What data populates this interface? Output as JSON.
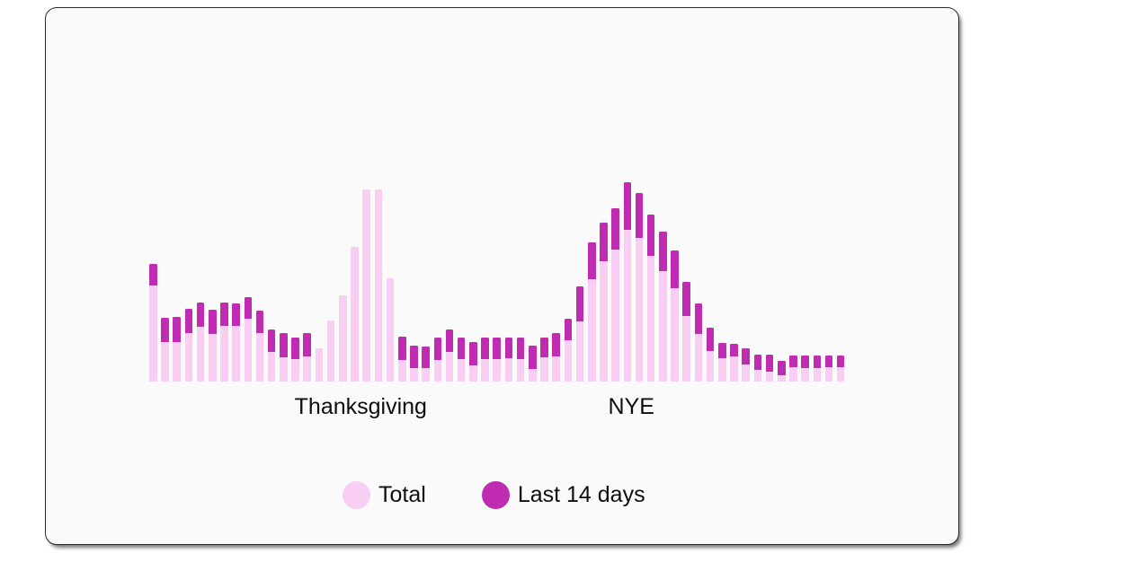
{
  "chart_data": {
    "type": "bar",
    "stacked": true,
    "note": "Daily counts; no axes or numeric labels shown. Values are bar heights in screen px; 'Last 14 days' is the dark segment drawn at the top of each 'Total' bar.",
    "unit": "px",
    "ylim": [
      0,
      230
    ],
    "grid": false,
    "legend_position": "bottom",
    "series": [
      {
        "name": "Total",
        "color": "#f9cef3",
        "values": [
          131,
          71,
          72,
          81,
          88,
          80,
          88,
          87,
          94,
          79,
          58,
          54,
          49,
          54,
          37,
          68,
          96,
          150,
          214,
          214,
          115,
          50,
          40,
          39,
          49,
          58,
          49,
          44,
          49,
          49,
          49,
          49,
          40,
          49,
          54,
          70,
          106,
          155,
          177,
          193,
          222,
          210,
          186,
          167,
          146,
          111,
          87,
          60,
          43,
          42,
          37,
          30,
          30,
          23,
          29,
          29,
          29,
          29,
          29
        ]
      },
      {
        "name": "Last 14 days",
        "color": "#bf2bb1",
        "values": [
          24,
          27,
          28,
          27,
          27,
          27,
          26,
          25,
          24,
          25,
          25,
          27,
          24,
          26,
          0,
          0,
          0,
          0,
          0,
          0,
          0,
          26,
          25,
          24,
          25,
          25,
          24,
          26,
          24,
          24,
          23,
          24,
          26,
          22,
          26,
          24,
          39,
          41,
          43,
          46,
          53,
          50,
          46,
          44,
          42,
          38,
          34,
          26,
          17,
          14,
          18,
          17,
          19,
          16,
          13,
          14,
          14,
          13,
          13
        ]
      }
    ],
    "annotations": [
      {
        "label": "Thanksgiving",
        "bar_pos": 17.5
      },
      {
        "label": "NYE",
        "bar_pos": 40.3
      }
    ]
  },
  "legend": {
    "total_label": "Total",
    "last14_label": "Last 14 days"
  },
  "colors": {
    "total": "#f9cef3",
    "last14": "#bf2bb1",
    "card_bg": "#fbfafb",
    "card_border": "#2b2b2b",
    "text": "#0d0d0d"
  }
}
